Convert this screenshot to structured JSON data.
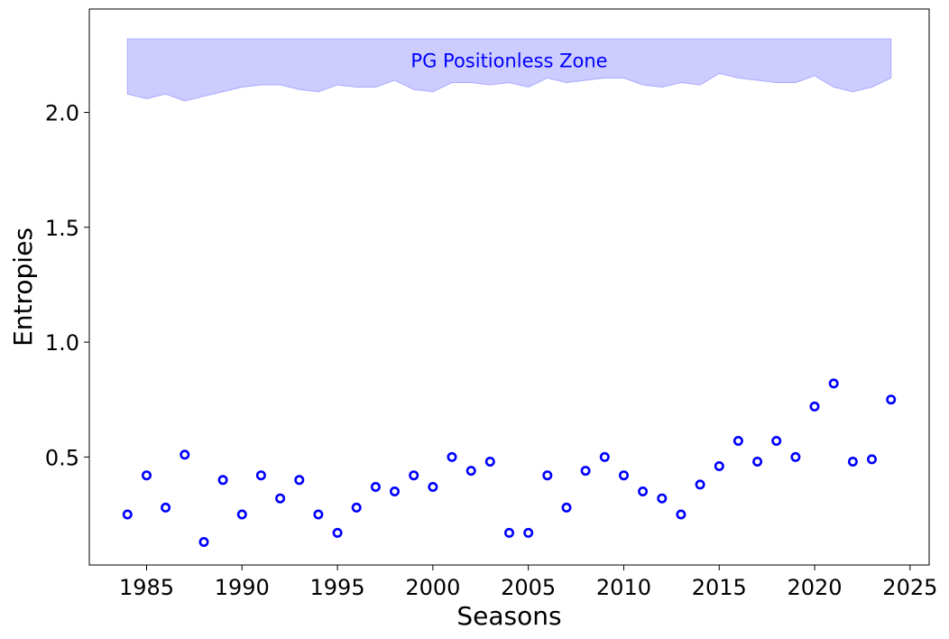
{
  "chart_data": {
    "type": "scatter",
    "xlabel": "Seasons",
    "ylabel": "Entropies",
    "xlim": [
      1982,
      2026
    ],
    "ylim": [
      0.03,
      2.45
    ],
    "x_ticks": [
      1985,
      1990,
      1995,
      2000,
      2005,
      2010,
      2015,
      2020,
      2025
    ],
    "y_ticks": [
      0.5,
      1.0,
      1.5,
      2.0
    ],
    "grid": false,
    "marker": "open-circle",
    "marker_color": "#0000ff",
    "band_color": "#ccccff",
    "band_edge_color": "#aaaaff",
    "band_label": "PG Positionless Zone",
    "band_label_color": "#0000ff",
    "points": {
      "x": [
        1984,
        1985,
        1986,
        1987,
        1988,
        1989,
        1990,
        1991,
        1992,
        1993,
        1994,
        1995,
        1996,
        1997,
        1998,
        1999,
        2000,
        2001,
        2002,
        2003,
        2004,
        2005,
        2006,
        2007,
        2008,
        2009,
        2010,
        2011,
        2012,
        2013,
        2014,
        2015,
        2016,
        2017,
        2018,
        2019,
        2020,
        2021,
        2022,
        2023,
        2024
      ],
      "y": [
        0.25,
        0.42,
        0.28,
        0.51,
        0.13,
        0.4,
        0.25,
        0.42,
        0.32,
        0.4,
        0.25,
        0.17,
        0.28,
        0.37,
        0.35,
        0.42,
        0.37,
        0.5,
        0.44,
        0.48,
        0.17,
        0.17,
        0.42,
        0.28,
        0.44,
        0.5,
        0.42,
        0.35,
        0.32,
        0.25,
        0.38,
        0.46,
        0.57,
        0.48,
        0.57,
        0.5,
        0.72,
        0.82,
        0.48,
        0.49,
        0.75
      ]
    },
    "band": {
      "x": [
        1984,
        1985,
        1986,
        1987,
        1988,
        1989,
        1990,
        1991,
        1992,
        1993,
        1994,
        1995,
        1996,
        1997,
        1998,
        1999,
        2000,
        2001,
        2002,
        2003,
        2004,
        2005,
        2006,
        2007,
        2008,
        2009,
        2010,
        2011,
        2012,
        2013,
        2014,
        2015,
        2016,
        2017,
        2018,
        2019,
        2020,
        2021,
        2022,
        2023,
        2024
      ],
      "lower": [
        2.08,
        2.06,
        2.08,
        2.05,
        2.07,
        2.09,
        2.11,
        2.12,
        2.12,
        2.1,
        2.09,
        2.12,
        2.11,
        2.11,
        2.14,
        2.1,
        2.09,
        2.13,
        2.13,
        2.12,
        2.13,
        2.11,
        2.15,
        2.13,
        2.14,
        2.15,
        2.15,
        2.12,
        2.11,
        2.13,
        2.12,
        2.17,
        2.15,
        2.14,
        2.13,
        2.13,
        2.16,
        2.11,
        2.09,
        2.11,
        2.15
      ],
      "upper": [
        2.32,
        2.32,
        2.32,
        2.32,
        2.32,
        2.32,
        2.32,
        2.32,
        2.32,
        2.32,
        2.32,
        2.32,
        2.32,
        2.32,
        2.32,
        2.32,
        2.32,
        2.32,
        2.32,
        2.32,
        2.32,
        2.32,
        2.32,
        2.32,
        2.32,
        2.32,
        2.32,
        2.32,
        2.32,
        2.32,
        2.32,
        2.32,
        2.32,
        2.32,
        2.32,
        2.32,
        2.32,
        2.32,
        2.32,
        2.32,
        2.32
      ]
    }
  }
}
